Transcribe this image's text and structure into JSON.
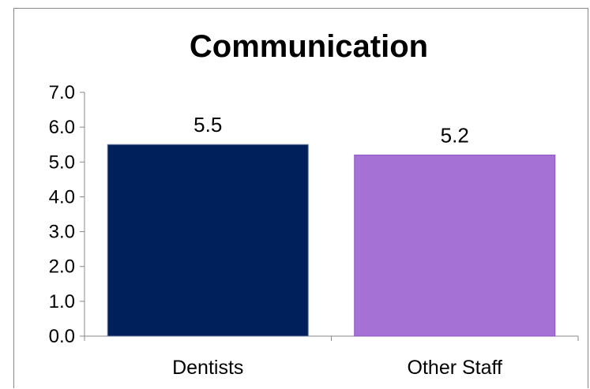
{
  "chart_data": {
    "type": "bar",
    "title": "Communication",
    "xlabel": "",
    "ylabel": "",
    "categories": [
      "Dentists",
      "Other Staff"
    ],
    "values": [
      5.5,
      5.2
    ],
    "data_labels": [
      "5.5",
      "5.2"
    ],
    "ylim": [
      0,
      7
    ],
    "yticks": [
      "0.0",
      "1.0",
      "2.0",
      "3.0",
      "4.0",
      "5.0",
      "6.0",
      "7.0"
    ],
    "colors": {
      "bars": [
        "#00205c",
        "#a571d5"
      ],
      "bar_borders": [
        "#6a7aa0",
        "#8a55c0"
      ],
      "axis": "#888888"
    },
    "grid": false,
    "legend": "none"
  }
}
